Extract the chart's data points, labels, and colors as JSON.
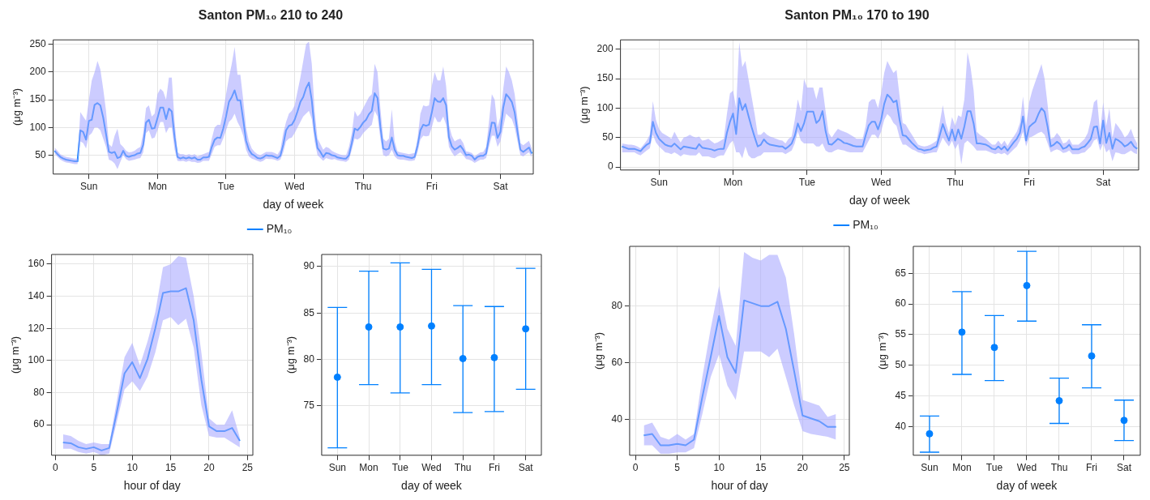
{
  "chart_data": [
    {
      "type": "line",
      "title": "Santon PM₁₀ 210 to 240",
      "xlabel": "day of week",
      "ylabel": "(μg m⁻³)",
      "ylim": [
        16,
        258
      ],
      "yticks": [
        50,
        100,
        150,
        200,
        250
      ],
      "grid": true,
      "legend": "bottom",
      "marker": "none",
      "line_style": "solid",
      "categories": [
        null,
        null,
        null,
        null,
        null,
        null,
        null,
        null,
        null,
        null,
        null,
        null,
        "Sun",
        null,
        null,
        null,
        null,
        null,
        null,
        null,
        null,
        null,
        null,
        null,
        null,
        null,
        null,
        null,
        null,
        null,
        null,
        null,
        null,
        null,
        null,
        null,
        "Mon",
        null,
        null,
        null,
        null,
        null,
        null,
        null,
        null,
        null,
        null,
        null,
        null,
        null,
        null,
        null,
        null,
        null,
        null,
        null,
        null,
        null,
        null,
        null,
        "Tue",
        null,
        null,
        null,
        null,
        null,
        null,
        null,
        null,
        null,
        null,
        null,
        null,
        null,
        null,
        null,
        null,
        null,
        null,
        null,
        null,
        null,
        null,
        null,
        "Wed",
        null,
        null,
        null,
        null,
        null,
        null,
        null,
        null,
        null,
        null,
        null,
        null,
        null,
        null,
        null,
        null,
        null,
        null,
        null,
        null,
        null,
        null,
        null,
        "Thu",
        null,
        null,
        null,
        null,
        null,
        null,
        null,
        null,
        null,
        null,
        null,
        null,
        null,
        null,
        null,
        null,
        null,
        null,
        null,
        null,
        null,
        null,
        null,
        "Fri",
        null,
        null,
        null,
        null,
        null,
        null,
        null,
        null,
        null,
        null,
        null,
        null,
        null,
        null,
        null,
        null,
        null,
        null,
        null,
        null,
        null,
        null,
        null,
        "Sat",
        null,
        null,
        null,
        null,
        null,
        null,
        null,
        null,
        null,
        null,
        null
      ],
      "series": [
        {
          "name": "PM₁₀",
          "color": "#0080ff",
          "values": [
            58,
            52,
            47,
            44,
            42,
            41,
            40,
            39,
            39,
            95,
            92,
            78,
            112,
            114,
            141,
            144,
            140,
            118,
            88,
            56,
            54,
            56,
            45,
            47,
            58,
            49,
            47,
            49,
            50,
            53,
            54,
            69,
            109,
            114,
            98,
            99,
            117,
            136,
            136,
            115,
            134,
            129,
            82,
            47,
            44,
            46,
            44,
            46,
            44,
            46,
            42,
            42,
            46,
            46,
            47,
            65,
            78,
            82,
            81,
            98,
            120,
            146,
            155,
            167,
            149,
            149,
            114,
            76,
            60,
            52,
            49,
            45,
            44,
            46,
            50,
            49,
            49,
            47,
            45,
            49,
            69,
            95,
            103,
            105,
            114,
            129,
            146,
            155,
            171,
            181,
            149,
            95,
            63,
            56,
            47,
            54,
            53,
            50,
            49,
            46,
            45,
            44,
            44,
            50,
            72,
            98,
            95,
            101,
            109,
            114,
            124,
            130,
            162,
            153,
            101,
            62,
            60,
            62,
            82,
            60,
            50,
            49,
            49,
            47,
            46,
            45,
            47,
            67,
            95,
            105,
            103,
            105,
            127,
            153,
            147,
            146,
            153,
            140,
            82,
            66,
            60,
            63,
            67,
            60,
            50,
            51,
            49,
            42,
            47,
            49,
            49,
            53,
            82,
            109,
            108,
            81,
            92,
            136,
            160,
            154,
            146,
            127,
            92,
            60,
            56,
            60,
            64,
            53
          ],
          "lower": [
            53,
            47,
            42,
            39,
            37,
            36,
            35,
            34,
            34,
            75,
            72,
            62,
            85,
            90,
            100,
            100,
            95,
            80,
            65,
            42,
            40,
            35,
            25,
            38,
            50,
            43,
            40,
            41,
            42,
            44,
            45,
            55,
            90,
            95,
            80,
            82,
            95,
            110,
            110,
            90,
            100,
            100,
            60,
            40,
            39,
            40,
            38,
            40,
            38,
            38,
            36,
            37,
            40,
            40,
            40,
            52,
            65,
            68,
            68,
            80,
            95,
            110,
            115,
            125,
            110,
            100,
            85,
            60,
            48,
            44,
            42,
            40,
            38,
            40,
            44,
            43,
            43,
            42,
            40,
            42,
            55,
            75,
            80,
            82,
            90,
            100,
            110,
            120,
            125,
            130,
            115,
            75,
            50,
            45,
            40,
            45,
            43,
            42,
            43,
            41,
            40,
            39,
            38,
            42,
            60,
            80,
            78,
            82,
            90,
            95,
            100,
            105,
            130,
            120,
            80,
            50,
            48,
            50,
            60,
            48,
            43,
            42,
            42,
            41,
            40,
            40,
            41,
            55,
            78,
            85,
            84,
            85,
            100,
            120,
            110,
            110,
            120,
            105,
            65,
            55,
            48,
            52,
            55,
            50,
            43,
            42,
            40,
            36,
            39,
            42,
            42,
            45,
            65,
            85,
            85,
            65,
            75,
            100,
            125,
            120,
            115,
            100,
            75,
            50,
            48,
            52,
            55,
            46
          ],
          "upper": [
            64,
            58,
            52,
            49,
            47,
            46,
            45,
            44,
            44,
            128,
            120,
            112,
            150,
            185,
            200,
            220,
            205,
            170,
            130,
            70,
            65,
            85,
            98,
            70,
            65,
            58,
            55,
            56,
            58,
            62,
            65,
            90,
            135,
            140,
            120,
            125,
            160,
            170,
            165,
            150,
            190,
            190,
            110,
            55,
            52,
            52,
            50,
            52,
            50,
            52,
            48,
            50,
            52,
            54,
            56,
            80,
            100,
            105,
            105,
            130,
            160,
            190,
            215,
            245,
            195,
            195,
            150,
            100,
            75,
            62,
            56,
            52,
            50,
            53,
            56,
            56,
            56,
            54,
            51,
            60,
            90,
            110,
            125,
            130,
            140,
            165,
            190,
            220,
            250,
            255,
            215,
            130,
            80,
            70,
            60,
            65,
            63,
            58,
            55,
            53,
            51,
            50,
            50,
            65,
            90,
            130,
            120,
            125,
            135,
            145,
            155,
            160,
            215,
            200,
            135,
            80,
            75,
            80,
            133,
            75,
            57,
            55,
            54,
            53,
            52,
            53,
            54,
            80,
            125,
            140,
            138,
            140,
            175,
            200,
            185,
            185,
            210,
            175,
            105,
            85,
            75,
            78,
            80,
            72,
            57,
            56,
            54,
            48,
            52,
            55,
            56,
            65,
            110,
            160,
            150,
            100,
            120,
            170,
            210,
            200,
            185,
            160,
            115,
            72,
            68,
            72,
            76,
            62
          ]
        }
      ]
    },
    {
      "type": "line",
      "title": "Santon PM₁₀ 170 to 190",
      "xlabel": "day of week",
      "ylabel": "(μg m⁻³)",
      "ylim": [
        -5,
        216
      ],
      "yticks": [
        0,
        50,
        100,
        150,
        200
      ],
      "grid": true,
      "legend": "bottom",
      "marker": "none",
      "line_style": "solid",
      "categories": [
        null,
        null,
        null,
        null,
        null,
        null,
        null,
        null,
        null,
        null,
        null,
        null,
        "Sun",
        null,
        null,
        null,
        null,
        null,
        null,
        null,
        null,
        null,
        null,
        null,
        null,
        null,
        null,
        null,
        null,
        null,
        null,
        null,
        null,
        null,
        null,
        null,
        "Mon",
        null,
        null,
        null,
        null,
        null,
        null,
        null,
        null,
        null,
        null,
        null,
        null,
        null,
        null,
        null,
        null,
        null,
        null,
        null,
        null,
        null,
        null,
        null,
        "Tue",
        null,
        null,
        null,
        null,
        null,
        null,
        null,
        null,
        null,
        null,
        null,
        null,
        null,
        null,
        null,
        null,
        null,
        null,
        null,
        null,
        null,
        null,
        null,
        "Wed",
        null,
        null,
        null,
        null,
        null,
        null,
        null,
        null,
        null,
        null,
        null,
        null,
        null,
        null,
        null,
        null,
        null,
        null,
        null,
        null,
        null,
        null,
        null,
        "Thu",
        null,
        null,
        null,
        null,
        null,
        null,
        null,
        null,
        null,
        null,
        null,
        null,
        null,
        null,
        null,
        null,
        null,
        null,
        null,
        null,
        null,
        null,
        null,
        "Fri",
        null,
        null,
        null,
        null,
        null,
        null,
        null,
        null,
        null,
        null,
        null,
        null,
        null,
        null,
        null,
        null,
        null,
        null,
        null,
        null,
        null,
        null,
        null,
        "Sat",
        null,
        null,
        null,
        null,
        null,
        null,
        null,
        null,
        null,
        null,
        null
      ],
      "series": [
        {
          "name": "PM₁₀",
          "color": "#0080ff",
          "values": [
            35,
            33,
            31,
            31,
            31,
            29,
            27,
            33,
            38,
            41,
            77,
            58,
            48,
            43,
            38,
            36,
            35,
            40,
            35,
            30,
            35,
            34,
            33,
            32,
            31,
            39,
            33,
            32,
            31,
            30,
            28,
            30,
            31,
            31,
            58,
            77,
            91,
            56,
            117,
            97,
            107,
            87,
            68,
            51,
            35,
            38,
            47,
            41,
            38,
            37,
            36,
            35,
            35,
            31,
            35,
            40,
            53,
            74,
            61,
            74,
            94,
            94,
            94,
            75,
            80,
            95,
            61,
            39,
            38,
            43,
            48,
            45,
            41,
            40,
            38,
            36,
            35,
            35,
            35,
            54,
            71,
            77,
            77,
            64,
            80,
            107,
            123,
            118,
            110,
            113,
            80,
            54,
            53,
            47,
            41,
            36,
            31,
            30,
            28,
            29,
            30,
            33,
            35,
            54,
            73,
            58,
            45,
            64,
            45,
            64,
            48,
            69,
            95,
            95,
            74,
            40,
            40,
            39,
            38,
            35,
            31,
            30,
            35,
            30,
            35,
            28,
            35,
            42,
            48,
            58,
            86,
            45,
            68,
            73,
            77,
            90,
            100,
            94,
            68,
            35,
            38,
            43,
            39,
            31,
            33,
            38,
            30,
            30,
            30,
            33,
            35,
            41,
            48,
            68,
            69,
            40,
            79,
            41,
            58,
            31,
            48,
            45,
            41,
            35,
            38,
            43,
            35,
            31
          ],
          "lower": [
            25,
            25,
            25,
            25,
            25,
            22,
            20,
            24,
            28,
            32,
            55,
            42,
            35,
            30,
            25,
            24,
            22,
            25,
            22,
            18,
            22,
            21,
            20,
            20,
            20,
            25,
            18,
            18,
            18,
            16,
            15,
            18,
            20,
            20,
            30,
            40,
            45,
            25,
            25,
            15,
            35,
            20,
            15,
            15,
            18,
            20,
            25,
            25,
            25,
            25,
            25,
            25,
            25,
            22,
            25,
            28,
            40,
            60,
            45,
            40,
            40,
            40,
            40,
            35,
            35,
            40,
            28,
            25,
            25,
            28,
            30,
            29,
            28,
            26,
            25,
            25,
            25,
            25,
            25,
            35,
            45,
            55,
            55,
            48,
            60,
            80,
            90,
            85,
            75,
            70,
            50,
            38,
            38,
            34,
            30,
            28,
            25,
            24,
            22,
            23,
            24,
            25,
            25,
            38,
            50,
            42,
            35,
            45,
            30,
            40,
            5,
            40,
            45,
            40,
            35,
            28,
            28,
            28,
            28,
            26,
            24,
            22,
            24,
            22,
            24,
            20,
            25,
            30,
            35,
            45,
            60,
            35,
            50,
            52,
            55,
            58,
            60,
            55,
            40,
            25,
            28,
            30,
            28,
            24,
            25,
            28,
            22,
            22,
            22,
            24,
            25,
            30,
            35,
            45,
            48,
            28,
            40,
            25,
            30,
            10,
            25,
            24,
            22,
            22,
            25,
            28,
            24,
            22
          ],
          "upper": [
            40,
            39,
            38,
            38,
            37,
            35,
            32,
            38,
            45,
            55,
            112,
            80,
            65,
            58,
            55,
            52,
            48,
            60,
            50,
            42,
            50,
            52,
            55,
            52,
            50,
            52,
            45,
            46,
            48,
            44,
            40,
            42,
            45,
            48,
            90,
            125,
            130,
            100,
            212,
            170,
            180,
            150,
            120,
            90,
            55,
            55,
            60,
            55,
            52,
            50,
            48,
            46,
            45,
            40,
            48,
            52,
            80,
            115,
            95,
            150,
            135,
            135,
            135,
            115,
            135,
            135,
            95,
            58,
            50,
            58,
            65,
            62,
            60,
            58,
            55,
            52,
            48,
            48,
            48,
            70,
            110,
            115,
            115,
            100,
            125,
            160,
            180,
            170,
            160,
            165,
            120,
            75,
            72,
            63,
            55,
            46,
            38,
            36,
            35,
            36,
            38,
            41,
            45,
            75,
            105,
            75,
            58,
            85,
            70,
            88,
            85,
            115,
            195,
            170,
            130,
            60,
            55,
            52,
            48,
            43,
            38,
            38,
            45,
            38,
            45,
            36,
            45,
            52,
            60,
            75,
            120,
            70,
            110,
            130,
            145,
            160,
            175,
            150,
            105,
            48,
            50,
            58,
            52,
            40,
            42,
            48,
            38,
            38,
            38,
            43,
            48,
            58,
            80,
            110,
            115,
            60,
            110,
            70,
            100,
            50,
            75,
            68,
            60,
            50,
            55,
            65,
            50,
            40
          ]
        }
      ]
    },
    {
      "type": "line",
      "xlabel": "hour of day",
      "ylabel": "(μg m⁻³)",
      "xlim": [
        -0.5,
        25.7
      ],
      "xticks": [
        0,
        5,
        10,
        15,
        20,
        25
      ],
      "ylim": [
        41,
        166
      ],
      "yticks": [
        60,
        80,
        100,
        120,
        140,
        160
      ],
      "grid": true,
      "marker": "none",
      "line_style": "solid",
      "x": [
        1,
        2,
        3,
        4,
        5,
        6,
        7,
        8,
        9,
        10,
        11,
        12,
        13,
        14,
        15,
        16,
        17,
        18,
        19,
        20,
        21,
        22,
        23,
        24
      ],
      "series": [
        {
          "color": "#0080ff",
          "values": [
            49,
            48.5,
            46,
            45,
            46,
            44,
            45.5,
            68,
            92,
            99,
            89,
            101,
            120,
            142,
            143,
            143,
            145,
            125,
            88,
            59,
            56,
            56,
            58,
            50
          ],
          "lower": [
            45,
            45,
            43,
            42,
            43,
            41,
            42,
            62,
            82,
            87,
            81,
            90,
            105,
            125,
            127,
            122,
            126,
            108,
            72,
            53,
            52,
            52,
            49,
            46
          ],
          "upper": [
            54,
            53,
            50,
            48,
            49,
            48,
            48,
            75,
            102,
            111,
            97,
            112,
            130,
            158,
            160,
            165,
            164,
            140,
            105,
            64,
            60,
            60,
            69,
            52
          ]
        }
      ]
    },
    {
      "type": "scatter",
      "xlabel": "day of week",
      "ylabel": "(μg m⁻³)",
      "categories": [
        "Sun",
        "Mon",
        "Tue",
        "Wed",
        "Thu",
        "Fri",
        "Sat"
      ],
      "ylim": [
        69.7,
        91.3
      ],
      "yticks": [
        75,
        80,
        85,
        90
      ],
      "grid": true,
      "marker": "circle",
      "series": [
        {
          "color": "#0080ff",
          "values": [
            78.1,
            83.5,
            83.5,
            83.6,
            80.1,
            80.2,
            83.3
          ],
          "errors": [
            [
              70.5,
              85.6
            ],
            [
              77.3,
              89.5
            ],
            [
              76.4,
              90.4
            ],
            [
              77.3,
              89.7
            ],
            [
              74.3,
              85.8
            ],
            [
              74.4,
              85.7
            ],
            [
              76.8,
              89.8
            ]
          ]
        }
      ]
    },
    {
      "type": "line",
      "xlabel": "hour of day",
      "ylabel": "(μg m⁻³)",
      "xlim": [
        -0.7,
        25.6
      ],
      "xticks": [
        0,
        5,
        10,
        15,
        20,
        25
      ],
      "ylim": [
        27.5,
        101
      ],
      "yticks": [
        40,
        60,
        80
      ],
      "grid": true,
      "marker": "none",
      "line_style": "solid",
      "x": [
        1,
        2,
        3,
        4,
        5,
        6,
        7,
        8,
        9,
        10,
        11,
        12,
        13,
        14,
        15,
        16,
        17,
        18,
        19,
        20,
        21,
        22,
        23,
        24
      ],
      "series": [
        {
          "color": "#0080ff",
          "values": [
            34.5,
            35,
            31,
            31,
            31.5,
            31,
            33,
            48,
            62,
            76.5,
            62,
            56.5,
            82,
            81,
            80,
            80,
            81.5,
            72,
            57,
            41.5,
            40.5,
            39.5,
            37.5,
            37.5
          ],
          "lower": [
            31,
            31,
            28,
            28,
            28.5,
            28.5,
            30,
            42,
            55,
            63,
            52,
            47,
            64,
            64,
            64,
            62,
            65,
            55,
            45,
            36,
            35,
            34.5,
            34,
            33
          ],
          "upper": [
            38,
            39,
            34,
            33,
            35,
            33,
            35,
            55,
            72,
            87,
            72,
            66,
            99,
            97,
            96,
            98,
            98,
            90,
            70,
            47,
            46,
            45,
            41,
            42
          ]
        }
      ]
    },
    {
      "type": "scatter",
      "xlabel": "day of week",
      "ylabel": "(μg m⁻³)",
      "categories": [
        "Sun",
        "Mon",
        "Tue",
        "Wed",
        "Thu",
        "Fri",
        "Sat"
      ],
      "ylim": [
        35.3,
        69.4
      ],
      "yticks": [
        40,
        45,
        50,
        55,
        60,
        65
      ],
      "grid": true,
      "marker": "circle",
      "series": [
        {
          "color": "#0080ff",
          "values": [
            38.8,
            55.4,
            52.9,
            63.0,
            44.2,
            51.5,
            41.0
          ],
          "errors": [
            [
              35.8,
              41.7
            ],
            [
              48.5,
              62.0
            ],
            [
              47.5,
              58.1
            ],
            [
              57.2,
              68.6
            ],
            [
              40.5,
              47.9
            ],
            [
              46.3,
              56.6
            ],
            [
              37.7,
              44.3
            ]
          ]
        }
      ]
    }
  ]
}
